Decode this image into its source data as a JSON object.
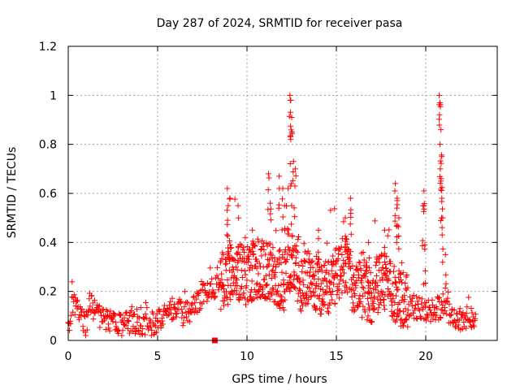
{
  "chart_data": {
    "type": "scatter",
    "title": "Day 287 of 2024, SRMTID for receiver pasa",
    "xlabel": "GPS time / hours",
    "ylabel": "SRMTID / TECUs",
    "xlim": [
      0,
      24
    ],
    "ylim": [
      0,
      1.2
    ],
    "x_ticks": [
      "0",
      "5",
      "10",
      "15",
      "20"
    ],
    "y_ticks": [
      "0",
      "0.2",
      "0.4",
      "0.6",
      "0.8",
      "1",
      "1.2"
    ],
    "grid": true,
    "marker": "plus",
    "series_color": "#ff0000",
    "baseline": [
      [
        0.0,
        0.07
      ],
      [
        0.3,
        0.15
      ],
      [
        0.6,
        0.1
      ],
      [
        1.0,
        0.06
      ],
      [
        1.2,
        0.14
      ],
      [
        1.6,
        0.1
      ],
      [
        2.0,
        0.07
      ],
      [
        2.5,
        0.08
      ],
      [
        3.0,
        0.05
      ],
      [
        3.5,
        0.07
      ],
      [
        4.0,
        0.06
      ],
      [
        4.5,
        0.06
      ],
      [
        5.0,
        0.07
      ],
      [
        5.5,
        0.1
      ],
      [
        6.0,
        0.13
      ],
      [
        6.5,
        0.1
      ],
      [
        7.0,
        0.13
      ],
      [
        7.5,
        0.18
      ],
      [
        8.0,
        0.2
      ],
      [
        8.5,
        0.22
      ],
      [
        9.0,
        0.25
      ],
      [
        9.5,
        0.27
      ],
      [
        10.0,
        0.25
      ],
      [
        10.5,
        0.28
      ],
      [
        11.0,
        0.27
      ],
      [
        11.5,
        0.26
      ],
      [
        12.0,
        0.22
      ],
      [
        12.5,
        0.3
      ],
      [
        13.0,
        0.22
      ],
      [
        13.5,
        0.24
      ],
      [
        14.0,
        0.22
      ],
      [
        14.5,
        0.2
      ],
      [
        15.0,
        0.26
      ],
      [
        15.5,
        0.3
      ],
      [
        16.0,
        0.2
      ],
      [
        16.5,
        0.2
      ],
      [
        17.0,
        0.18
      ],
      [
        17.5,
        0.24
      ],
      [
        18.0,
        0.2
      ],
      [
        18.5,
        0.16
      ],
      [
        19.0,
        0.14
      ],
      [
        19.5,
        0.13
      ],
      [
        20.0,
        0.12
      ],
      [
        20.5,
        0.12
      ],
      [
        21.0,
        0.14
      ],
      [
        21.5,
        0.08
      ],
      [
        22.0,
        0.08
      ],
      [
        22.5,
        0.09
      ],
      [
        22.8,
        0.07
      ]
    ],
    "spike_points": [
      [
        8.9,
        0.62
      ],
      [
        8.95,
        0.55
      ],
      [
        9.05,
        0.58
      ],
      [
        9.5,
        0.55
      ],
      [
        10.3,
        0.45
      ],
      [
        11.2,
        0.68
      ],
      [
        11.3,
        0.56
      ],
      [
        11.8,
        0.67
      ],
      [
        12.0,
        0.62
      ],
      [
        12.1,
        0.55
      ],
      [
        12.4,
        1.0
      ],
      [
        12.45,
        0.98
      ],
      [
        12.5,
        0.91
      ],
      [
        12.45,
        0.82
      ],
      [
        12.6,
        0.73
      ],
      [
        12.7,
        0.7
      ],
      [
        12.3,
        0.62
      ],
      [
        12.5,
        0.55
      ],
      [
        14.0,
        0.45
      ],
      [
        15.5,
        0.5
      ],
      [
        15.8,
        0.58
      ],
      [
        18.3,
        0.64
      ],
      [
        18.4,
        0.58
      ],
      [
        18.5,
        0.5
      ],
      [
        18.4,
        0.47
      ],
      [
        19.9,
        0.61
      ],
      [
        19.85,
        0.55
      ],
      [
        19.95,
        0.39
      ],
      [
        20.75,
        1.0
      ],
      [
        20.8,
        0.97
      ],
      [
        20.85,
        0.86
      ],
      [
        20.8,
        0.8
      ],
      [
        20.9,
        0.75
      ],
      [
        20.85,
        0.65
      ],
      [
        20.9,
        0.58
      ],
      [
        20.95,
        0.5
      ],
      [
        21.1,
        0.35
      ],
      [
        17.7,
        0.45
      ],
      [
        16.8,
        0.4
      ]
    ],
    "outlier_points": [
      [
        8.2,
        0.0
      ]
    ]
  }
}
